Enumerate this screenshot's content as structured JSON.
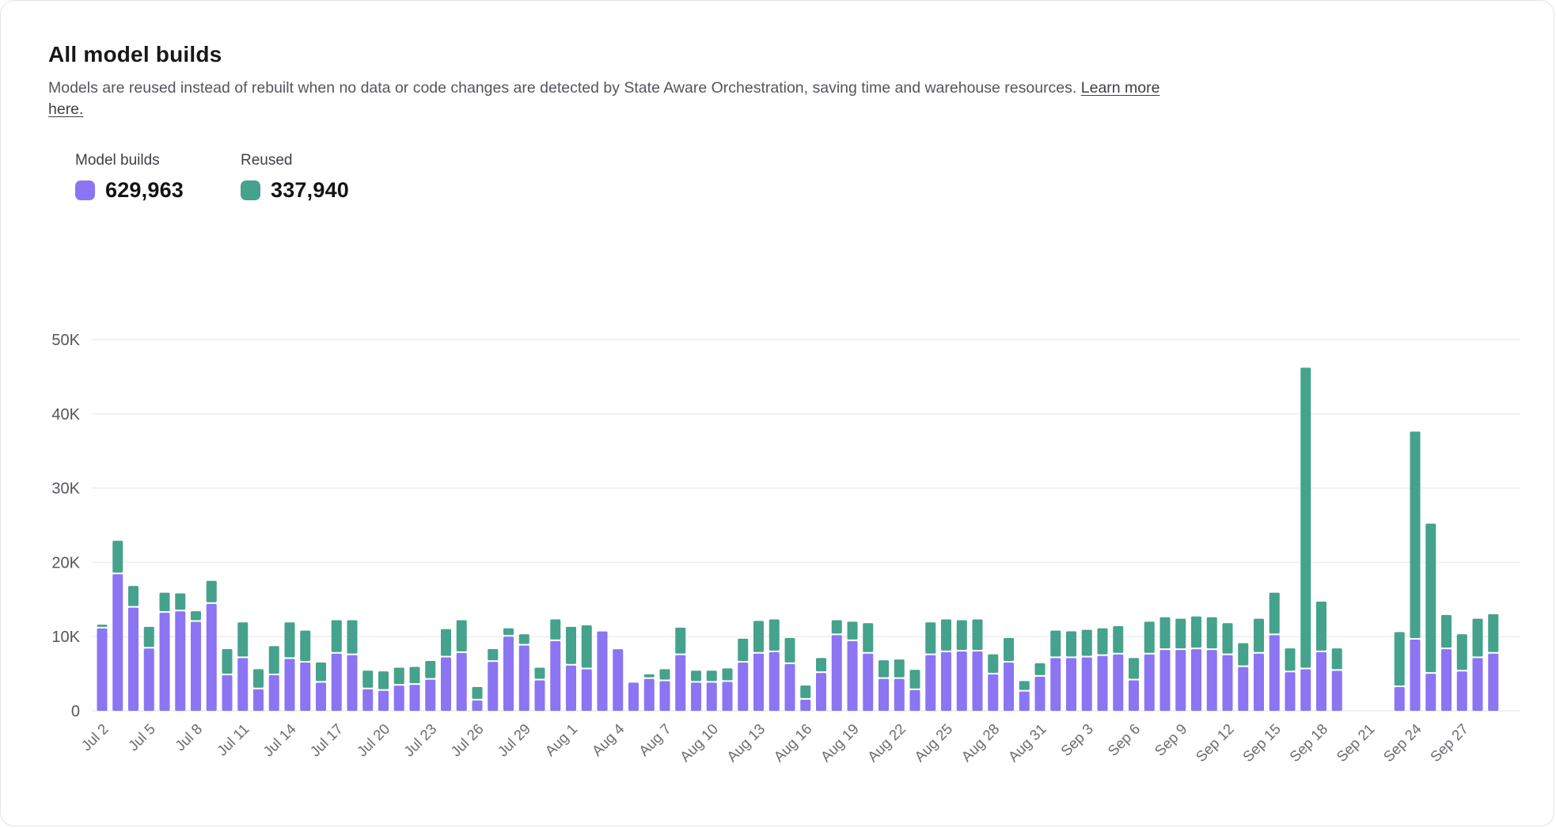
{
  "page": {
    "title": "All model builds",
    "description": "Models are reused instead of rebuilt when no data or code changes are detected by State Aware Orchestration, saving time and warehouse resources.",
    "link_text": "Learn more here."
  },
  "legend": [
    {
      "label": "Model builds",
      "value": "629,963",
      "color": "#8b75f2"
    },
    {
      "label": "Reused",
      "value": "337,940",
      "color": "#45a28c"
    }
  ],
  "colors": {
    "builds": "#8b75f2",
    "reused": "#45a28c",
    "gridline": "#ececef",
    "y_tick_text": "#55555e",
    "x_tick_text": "#6b6b73",
    "card_border": "#e4e4e7"
  },
  "chart_data": {
    "type": "bar",
    "stacked": true,
    "title": "All model builds",
    "value_unit": "thousands",
    "ylim": [
      0,
      50
    ],
    "y_tick_labels": [
      "0",
      "10K",
      "20K",
      "30K",
      "40K",
      "50K"
    ],
    "x_tick_every": 3,
    "grid": true,
    "legend_position": "top-left",
    "categories": [
      "Jul 2",
      "Jul 3",
      "Jul 4",
      "Jul 5",
      "Jul 6",
      "Jul 7",
      "Jul 8",
      "Jul 9",
      "Jul 10",
      "Jul 11",
      "Jul 12",
      "Jul 13",
      "Jul 14",
      "Jul 15",
      "Jul 16",
      "Jul 17",
      "Jul 18",
      "Jul 19",
      "Jul 20",
      "Jul 21",
      "Jul 22",
      "Jul 23",
      "Jul 24",
      "Jul 25",
      "Jul 26",
      "Jul 27",
      "Jul 28",
      "Jul 29",
      "Jul 30",
      "Jul 31",
      "Aug 1",
      "Aug 2",
      "Aug 3",
      "Aug 4",
      "Aug 5",
      "Aug 6",
      "Aug 7",
      "Aug 8",
      "Aug 9",
      "Aug 10",
      "Aug 11",
      "Aug 12",
      "Aug 13",
      "Aug 14",
      "Aug 15",
      "Aug 16",
      "Aug 17",
      "Aug 18",
      "Aug 19",
      "Aug 20",
      "Aug 21",
      "Aug 22",
      "Aug 23",
      "Aug 24",
      "Aug 25",
      "Aug 26",
      "Aug 27",
      "Aug 28",
      "Aug 29",
      "Aug 30",
      "Aug 31",
      "Sep 1",
      "Sep 2",
      "Sep 3",
      "Sep 4",
      "Sep 5",
      "Sep 6",
      "Sep 7",
      "Sep 8",
      "Sep 9",
      "Sep 10",
      "Sep 11",
      "Sep 12",
      "Sep 13",
      "Sep 14",
      "Sep 15",
      "Sep 16",
      "Sep 17",
      "Sep 18",
      "Sep 19",
      "Sep 20",
      "Sep 21",
      "Sep 22",
      "Sep 23",
      "Sep 24",
      "Sep 25",
      "Sep 26",
      "Sep 27",
      "Sep 28",
      "Sep 29"
    ],
    "series": [
      {
        "name": "Model builds",
        "color": "#8b75f2",
        "values": [
          11.1,
          18.4,
          13.9,
          8.4,
          13.2,
          13.4,
          12.0,
          14.4,
          4.8,
          7.1,
          2.9,
          4.8,
          7.0,
          6.5,
          3.8,
          7.7,
          7.5,
          2.9,
          2.7,
          3.4,
          3.5,
          4.2,
          7.2,
          7.8,
          1.4,
          6.6,
          10.0,
          8.8,
          4.1,
          9.4,
          6.1,
          5.6,
          10.7,
          8.3,
          3.8,
          4.3,
          4.0,
          7.5,
          3.8,
          3.8,
          3.9,
          6.5,
          7.7,
          7.9,
          6.3,
          1.5,
          5.1,
          10.2,
          9.4,
          7.7,
          4.3,
          4.3,
          2.8,
          7.5,
          7.9,
          8.0,
          8.0,
          4.9,
          6.5,
          2.6,
          4.6,
          7.1,
          7.1,
          7.2,
          7.4,
          7.6,
          4.1,
          7.6,
          8.2,
          8.2,
          8.3,
          8.2,
          7.5,
          5.9,
          7.7,
          10.2,
          5.2,
          5.6,
          7.9,
          5.4,
          0,
          0,
          0,
          3.2,
          9.6,
          5.0,
          8.3,
          5.3,
          7.1,
          7.7
        ]
      },
      {
        "name": "Reused",
        "color": "#45a28c",
        "values": [
          0.3,
          4.3,
          2.7,
          2.7,
          2.5,
          2.2,
          1.2,
          2.9,
          3.3,
          4.6,
          2.5,
          3.7,
          4.7,
          4.1,
          2.5,
          4.3,
          4.5,
          2.3,
          2.4,
          2.2,
          2.2,
          2.3,
          3.6,
          4.2,
          1.6,
          1.5,
          0.9,
          1.3,
          1.5,
          2.7,
          5.0,
          5.7,
          0,
          0,
          0,
          0.4,
          1.4,
          3.5,
          1.4,
          1.4,
          1.6,
          3.0,
          4.2,
          4.2,
          3.3,
          1.7,
          1.8,
          1.8,
          2.4,
          3.9,
          2.3,
          2.4,
          2.5,
          4.2,
          4.2,
          4.0,
          4.1,
          2.5,
          3.1,
          1.2,
          1.6,
          3.5,
          3.4,
          3.5,
          3.5,
          3.6,
          2.8,
          4.2,
          4.2,
          4.0,
          4.2,
          4.2,
          4.1,
          3.0,
          4.5,
          5.5,
          3.0,
          40.4,
          6.6,
          2.8,
          0,
          0,
          0,
          7.2,
          27.8,
          20.0,
          4.4,
          4.8,
          5.1,
          5.1
        ]
      }
    ]
  }
}
